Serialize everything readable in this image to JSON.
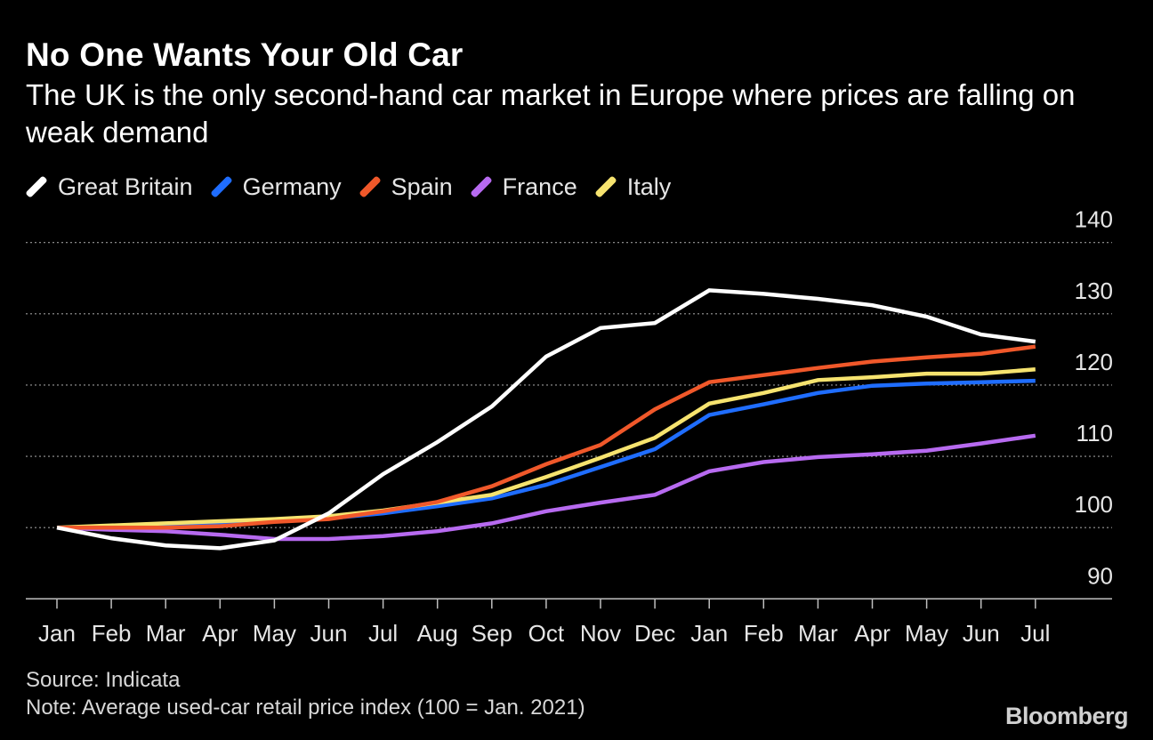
{
  "title": "No One Wants Your Old Car",
  "subtitle": "The UK is the only second-hand car market in Europe where prices are falling on weak demand",
  "source": "Source: Indicata",
  "note": "Note: Average used-car retail price index (100 = Jan. 2021)",
  "brand": "Bloomberg",
  "chart_data": {
    "type": "line",
    "title": "No One Wants Your Old Car",
    "subtitle": "The UK is the only second-hand car market in Europe where prices are falling on weak demand",
    "xlabel": "",
    "ylabel": "",
    "categories": [
      "Jan",
      "Feb",
      "Mar",
      "Apr",
      "May",
      "Jun",
      "Jul",
      "Aug",
      "Sep",
      "Oct",
      "Nov",
      "Dec",
      "Jan",
      "Feb",
      "Mar",
      "Apr",
      "May",
      "Jun",
      "Jul"
    ],
    "ylim": [
      90,
      140
    ],
    "yticks": [
      90,
      100,
      110,
      120,
      130,
      140
    ],
    "grid": true,
    "y_axis_side": "right",
    "legend_placement": "top-left",
    "series": [
      {
        "name": "Great Britain",
        "color": "#ffffff",
        "values": [
          100,
          98.5,
          97.5,
          97.1,
          98.2,
          102,
          107.5,
          112,
          117,
          124,
          128,
          128.7,
          133.3,
          132.8,
          132.1,
          131.2,
          129.6,
          127.1,
          126.1
        ]
      },
      {
        "name": "Germany",
        "color": "#1f6dff",
        "values": [
          100,
          100.1,
          100.3,
          100.6,
          100.9,
          101.3,
          102,
          103,
          104.1,
          106,
          108.5,
          111,
          115.8,
          117.3,
          118.9,
          119.9,
          120.2,
          120.4,
          120.6
        ]
      },
      {
        "name": "Spain",
        "color": "#f0582a",
        "values": [
          100,
          100,
          100,
          100.2,
          100.8,
          101.2,
          102.3,
          103.6,
          105.8,
          108.9,
          111.6,
          116.6,
          120.4,
          121.4,
          122.4,
          123.3,
          123.9,
          124.4,
          125.4
        ]
      },
      {
        "name": "France",
        "color": "#b76af0",
        "values": [
          100,
          99.7,
          99.5,
          99,
          98.4,
          98.4,
          98.8,
          99.5,
          100.6,
          102.3,
          103.5,
          104.6,
          107.9,
          109.2,
          109.9,
          110.3,
          110.8,
          111.8,
          112.9
        ]
      },
      {
        "name": "Italy",
        "color": "#f6e36f",
        "values": [
          100,
          100.3,
          100.6,
          100.9,
          101.2,
          101.6,
          102.4,
          103.5,
          104.6,
          107.1,
          109.8,
          112.6,
          117.4,
          118.9,
          120.7,
          121.1,
          121.6,
          121.6,
          122.2
        ]
      }
    ]
  }
}
